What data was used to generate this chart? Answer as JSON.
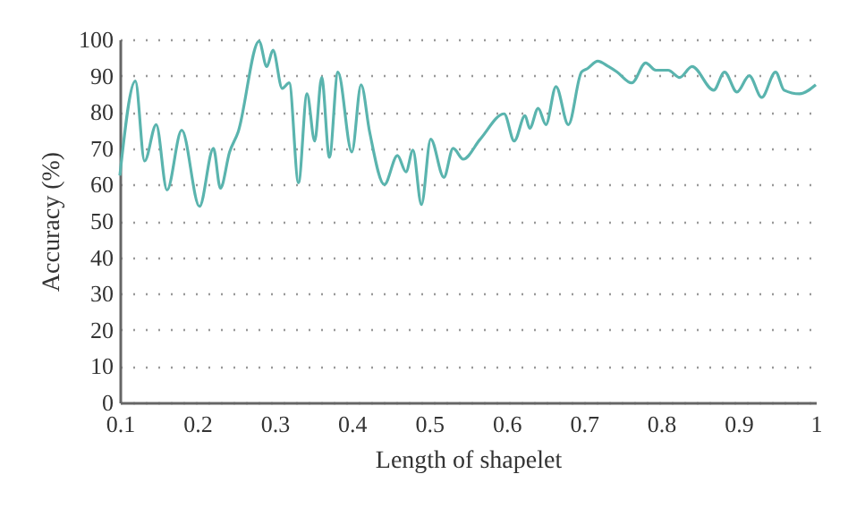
{
  "chart_data": {
    "type": "line",
    "xlabel": "Length of shapelet",
    "ylabel": "Accuracy (%)",
    "xlim": [
      0.1,
      1
    ],
    "xticks": [
      0.1,
      0.2,
      0.3,
      0.4,
      0.5,
      0.6,
      0.7,
      0.8,
      0.9,
      {
        "value": 1,
        "label": "1"
      }
    ],
    "ylim": [
      0,
      100
    ],
    "yticks": [
      0,
      10,
      20,
      30,
      40,
      50,
      60,
      70,
      80,
      90,
      100
    ],
    "grid": "y",
    "line_style": "solid",
    "x": [
      0.1,
      0.12,
      0.132,
      0.147,
      0.161,
      0.18,
      0.203,
      0.221,
      0.23,
      0.242,
      0.253,
      0.28,
      0.29,
      0.298,
      0.31,
      0.319,
      0.331,
      0.342,
      0.352,
      0.361,
      0.371,
      0.382,
      0.4,
      0.412,
      0.423,
      0.442,
      0.459,
      0.47,
      0.479,
      0.49,
      0.502,
      0.519,
      0.531,
      0.544,
      0.566,
      0.597,
      0.61,
      0.624,
      0.63,
      0.641,
      0.651,
      0.664,
      0.68,
      0.697,
      0.705,
      0.718,
      0.732,
      0.743,
      0.762,
      0.78,
      0.793,
      0.809,
      0.824,
      0.84,
      0.868,
      0.882,
      0.898,
      0.914,
      0.93,
      0.948,
      0.959,
      0.979,
      1
    ],
    "series": [
      {
        "color": "#5ab4ae",
        "values": [
          62.5,
          88.5,
          66.5,
          76.5,
          58.5,
          75,
          54,
          70,
          59,
          69,
          74.5,
          99.5,
          92.5,
          97,
          86.5,
          88,
          60.5,
          85,
          72,
          89.5,
          67.5,
          91,
          69,
          87.5,
          74.5,
          60,
          68,
          63.5,
          69.5,
          54.5,
          72.5,
          62,
          70,
          67,
          72.5,
          79.5,
          72,
          79,
          75.5,
          81,
          76.5,
          87,
          76.5,
          91,
          92,
          94,
          92.5,
          91,
          88,
          93.5,
          91.5,
          91.5,
          89.5,
          92.5,
          86,
          91,
          85.5,
          90,
          84,
          91,
          86,
          85,
          87.5
        ]
      }
    ]
  }
}
